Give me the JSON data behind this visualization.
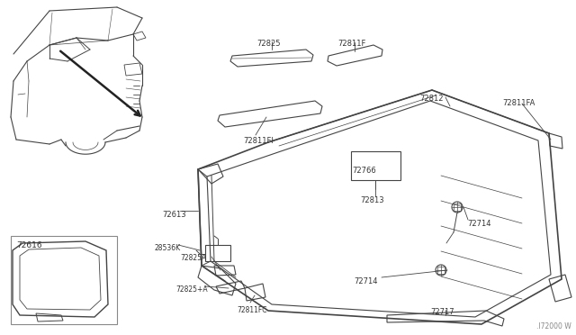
{
  "bg_color": "#ffffff",
  "lc": "#444444",
  "figsize": [
    6.4,
    3.72
  ],
  "dpi": 100,
  "watermark": ".I72000 W",
  "labels": [
    [
      "72825",
      [
        302,
        40
      ]
    ],
    [
      "72811F",
      [
        395,
        43
      ]
    ],
    [
      "72812",
      [
        468,
        107
      ]
    ],
    [
      "72811FA",
      [
        560,
        107
      ]
    ],
    [
      "72766",
      [
        420,
        178
      ]
    ],
    [
      "72813",
      [
        404,
        215
      ]
    ],
    [
      "72613",
      [
        196,
        234
      ]
    ],
    [
      "28536K",
      [
        204,
        267
      ]
    ],
    [
      "72825A",
      [
        233,
        282
      ]
    ],
    [
      "72825+A",
      [
        216,
        315
      ]
    ],
    [
      "72811FC",
      [
        275,
        323
      ]
    ],
    [
      "72714",
      [
        519,
        244
      ]
    ],
    [
      "72714",
      [
        420,
        307
      ]
    ],
    [
      "72717",
      [
        495,
        307
      ]
    ],
    [
      "72616",
      [
        48,
        283
      ]
    ],
    [
      "72811FI",
      [
        283,
        151
      ]
    ]
  ]
}
